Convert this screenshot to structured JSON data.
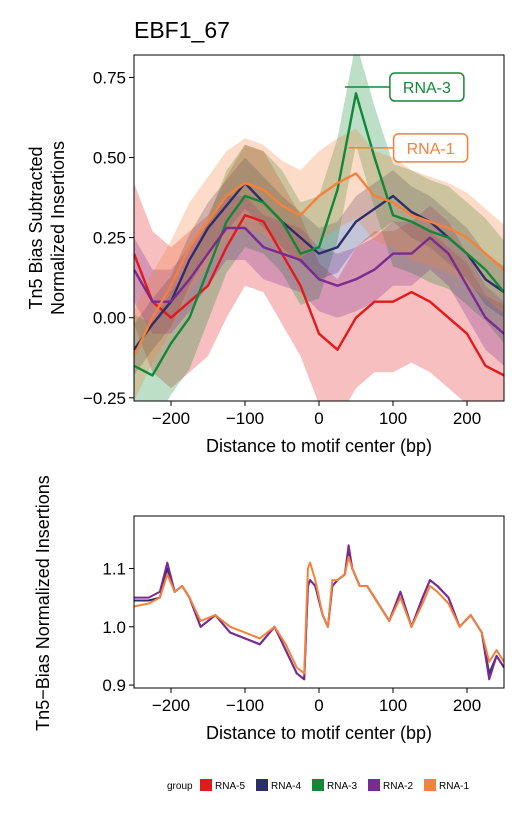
{
  "chart_data": [
    {
      "type": "line",
      "title": "EBF1_67",
      "xlabel": "Distance to motif center (bp)",
      "ylabel_lines": [
        "Tn5 Bias Subtracted",
        "Normalized Insertions"
      ],
      "xlim": [
        -250,
        250
      ],
      "ylim": [
        -0.26,
        0.82
      ],
      "xticks": [
        -200,
        -100,
        0,
        100,
        200
      ],
      "xtick_labels": [
        "−200",
        "−100",
        "0",
        "100",
        "200"
      ],
      "yticks": [
        -0.25,
        0,
        0.25,
        0.5,
        0.75
      ],
      "ytick_labels": [
        "−0.25",
        "0.00",
        "0.25",
        "0.50",
        "0.75"
      ],
      "grid": false,
      "x": [
        -250,
        -225,
        -200,
        -175,
        -150,
        -125,
        -100,
        -75,
        -50,
        -25,
        0,
        25,
        50,
        75,
        100,
        125,
        150,
        175,
        200,
        225,
        250
      ],
      "series": [
        {
          "name": "RNA-5",
          "color": "#e31a1c",
          "values": [
            0.2,
            0.05,
            0.0,
            0.05,
            0.1,
            0.22,
            0.32,
            0.3,
            0.2,
            0.1,
            -0.05,
            -0.1,
            0.0,
            0.05,
            0.05,
            0.08,
            0.05,
            0.0,
            -0.05,
            -0.15,
            -0.18
          ],
          "band": 0.22
        },
        {
          "name": "RNA-4",
          "color": "#2c2d6b",
          "values": [
            -0.1,
            -0.02,
            0.05,
            0.18,
            0.28,
            0.35,
            0.42,
            0.36,
            0.3,
            0.25,
            0.2,
            0.22,
            0.3,
            0.34,
            0.38,
            0.33,
            0.3,
            0.25,
            0.2,
            0.12,
            0.08
          ],
          "band": 0.08
        },
        {
          "name": "RNA-3",
          "color": "#118836",
          "values": [
            -0.15,
            -0.18,
            -0.08,
            0.0,
            0.15,
            0.3,
            0.38,
            0.36,
            0.3,
            0.2,
            0.22,
            0.4,
            0.7,
            0.5,
            0.32,
            0.3,
            0.27,
            0.25,
            0.2,
            0.15,
            0.08
          ],
          "band": 0.16
        },
        {
          "name": "RNA-2",
          "color": "#7b2a90",
          "values": [
            0.15,
            0.05,
            0.05,
            0.12,
            0.2,
            0.28,
            0.28,
            0.22,
            0.2,
            0.18,
            0.12,
            0.1,
            0.12,
            0.15,
            0.2,
            0.2,
            0.25,
            0.2,
            0.1,
            0.0,
            -0.05
          ],
          "band": 0.1
        },
        {
          "name": "RNA-1",
          "color": "#f5813a",
          "values": [
            -0.12,
            0.0,
            0.1,
            0.22,
            0.3,
            0.38,
            0.42,
            0.4,
            0.35,
            0.32,
            0.38,
            0.42,
            0.45,
            0.38,
            0.36,
            0.32,
            0.3,
            0.28,
            0.25,
            0.2,
            0.15
          ],
          "band": 0.14
        }
      ],
      "annotations": [
        {
          "text": "RNA-3",
          "series": "RNA-3",
          "x": 35,
          "y": 0.72,
          "color": "#118836"
        },
        {
          "text": "RNA-1",
          "series": "RNA-1",
          "x": 40,
          "y": 0.53,
          "color": "#f5813a"
        }
      ]
    },
    {
      "type": "line",
      "xlabel": "Distance to motif center (bp)",
      "ylabel": "Tn5−Bias Normalized Insertions",
      "xlim": [
        -250,
        250
      ],
      "ylim": [
        0.895,
        1.19
      ],
      "xticks": [
        -200,
        -100,
        0,
        100,
        200
      ],
      "xtick_labels": [
        "−200",
        "−100",
        "0",
        "100",
        "200"
      ],
      "yticks": [
        0.9,
        1.0,
        1.1
      ],
      "ytick_labels": [
        "0.9",
        "1.0",
        "1.1"
      ],
      "grid": false,
      "x": [
        -250,
        -230,
        -215,
        -205,
        -195,
        -185,
        -175,
        -160,
        -140,
        -120,
        -100,
        -80,
        -60,
        -45,
        -30,
        -20,
        -15,
        -12,
        -5,
        5,
        12,
        18,
        25,
        35,
        40,
        45,
        55,
        65,
        75,
        85,
        95,
        110,
        125,
        140,
        150,
        160,
        175,
        190,
        205,
        220,
        230,
        240,
        250
      ],
      "series": [
        {
          "name": "RNA-4",
          "color": "#2c2d6b",
          "values": [
            1.045,
            1.045,
            1.05,
            1.1,
            1.06,
            1.07,
            1.05,
            1.0,
            1.02,
            0.99,
            0.98,
            0.97,
            1.0,
            0.96,
            0.92,
            0.91,
            1.07,
            1.08,
            1.07,
            1.02,
            1.0,
            1.07,
            1.08,
            1.09,
            1.13,
            1.1,
            1.07,
            1.07,
            1.05,
            1.03,
            1.01,
            1.06,
            1.0,
            1.05,
            1.08,
            1.07,
            1.05,
            1.0,
            1.02,
            0.99,
            0.92,
            0.95,
            0.93
          ]
        },
        {
          "name": "RNA-2",
          "color": "#7b2a90",
          "values": [
            1.05,
            1.05,
            1.06,
            1.11,
            1.06,
            1.07,
            1.05,
            1.0,
            1.02,
            0.99,
            0.98,
            0.97,
            1.0,
            0.96,
            0.92,
            0.91,
            1.07,
            1.08,
            1.07,
            1.02,
            1.0,
            1.07,
            1.08,
            1.09,
            1.14,
            1.1,
            1.07,
            1.07,
            1.05,
            1.03,
            1.01,
            1.06,
            1.0,
            1.05,
            1.08,
            1.07,
            1.05,
            1.0,
            1.02,
            0.99,
            0.91,
            0.95,
            0.93
          ]
        },
        {
          "name": "RNA-1",
          "color": "#f5813a",
          "values": [
            1.035,
            1.04,
            1.05,
            1.09,
            1.06,
            1.07,
            1.05,
            1.01,
            1.02,
            1.0,
            0.99,
            0.98,
            1.0,
            0.97,
            0.93,
            0.92,
            1.1,
            1.11,
            1.08,
            1.02,
            1.0,
            1.08,
            1.08,
            1.09,
            1.12,
            1.1,
            1.07,
            1.07,
            1.05,
            1.03,
            1.01,
            1.05,
            1.0,
            1.04,
            1.07,
            1.06,
            1.04,
            1.0,
            1.02,
            0.99,
            0.94,
            0.96,
            0.94
          ]
        }
      ]
    }
  ],
  "legend": {
    "title": "group",
    "items": [
      {
        "label": "RNA-5",
        "color": "#e31a1c"
      },
      {
        "label": "RNA-4",
        "color": "#2c2d6b"
      },
      {
        "label": "RNA-3",
        "color": "#118836"
      },
      {
        "label": "RNA-2",
        "color": "#7b2a90"
      },
      {
        "label": "RNA-1",
        "color": "#f5813a"
      }
    ]
  }
}
